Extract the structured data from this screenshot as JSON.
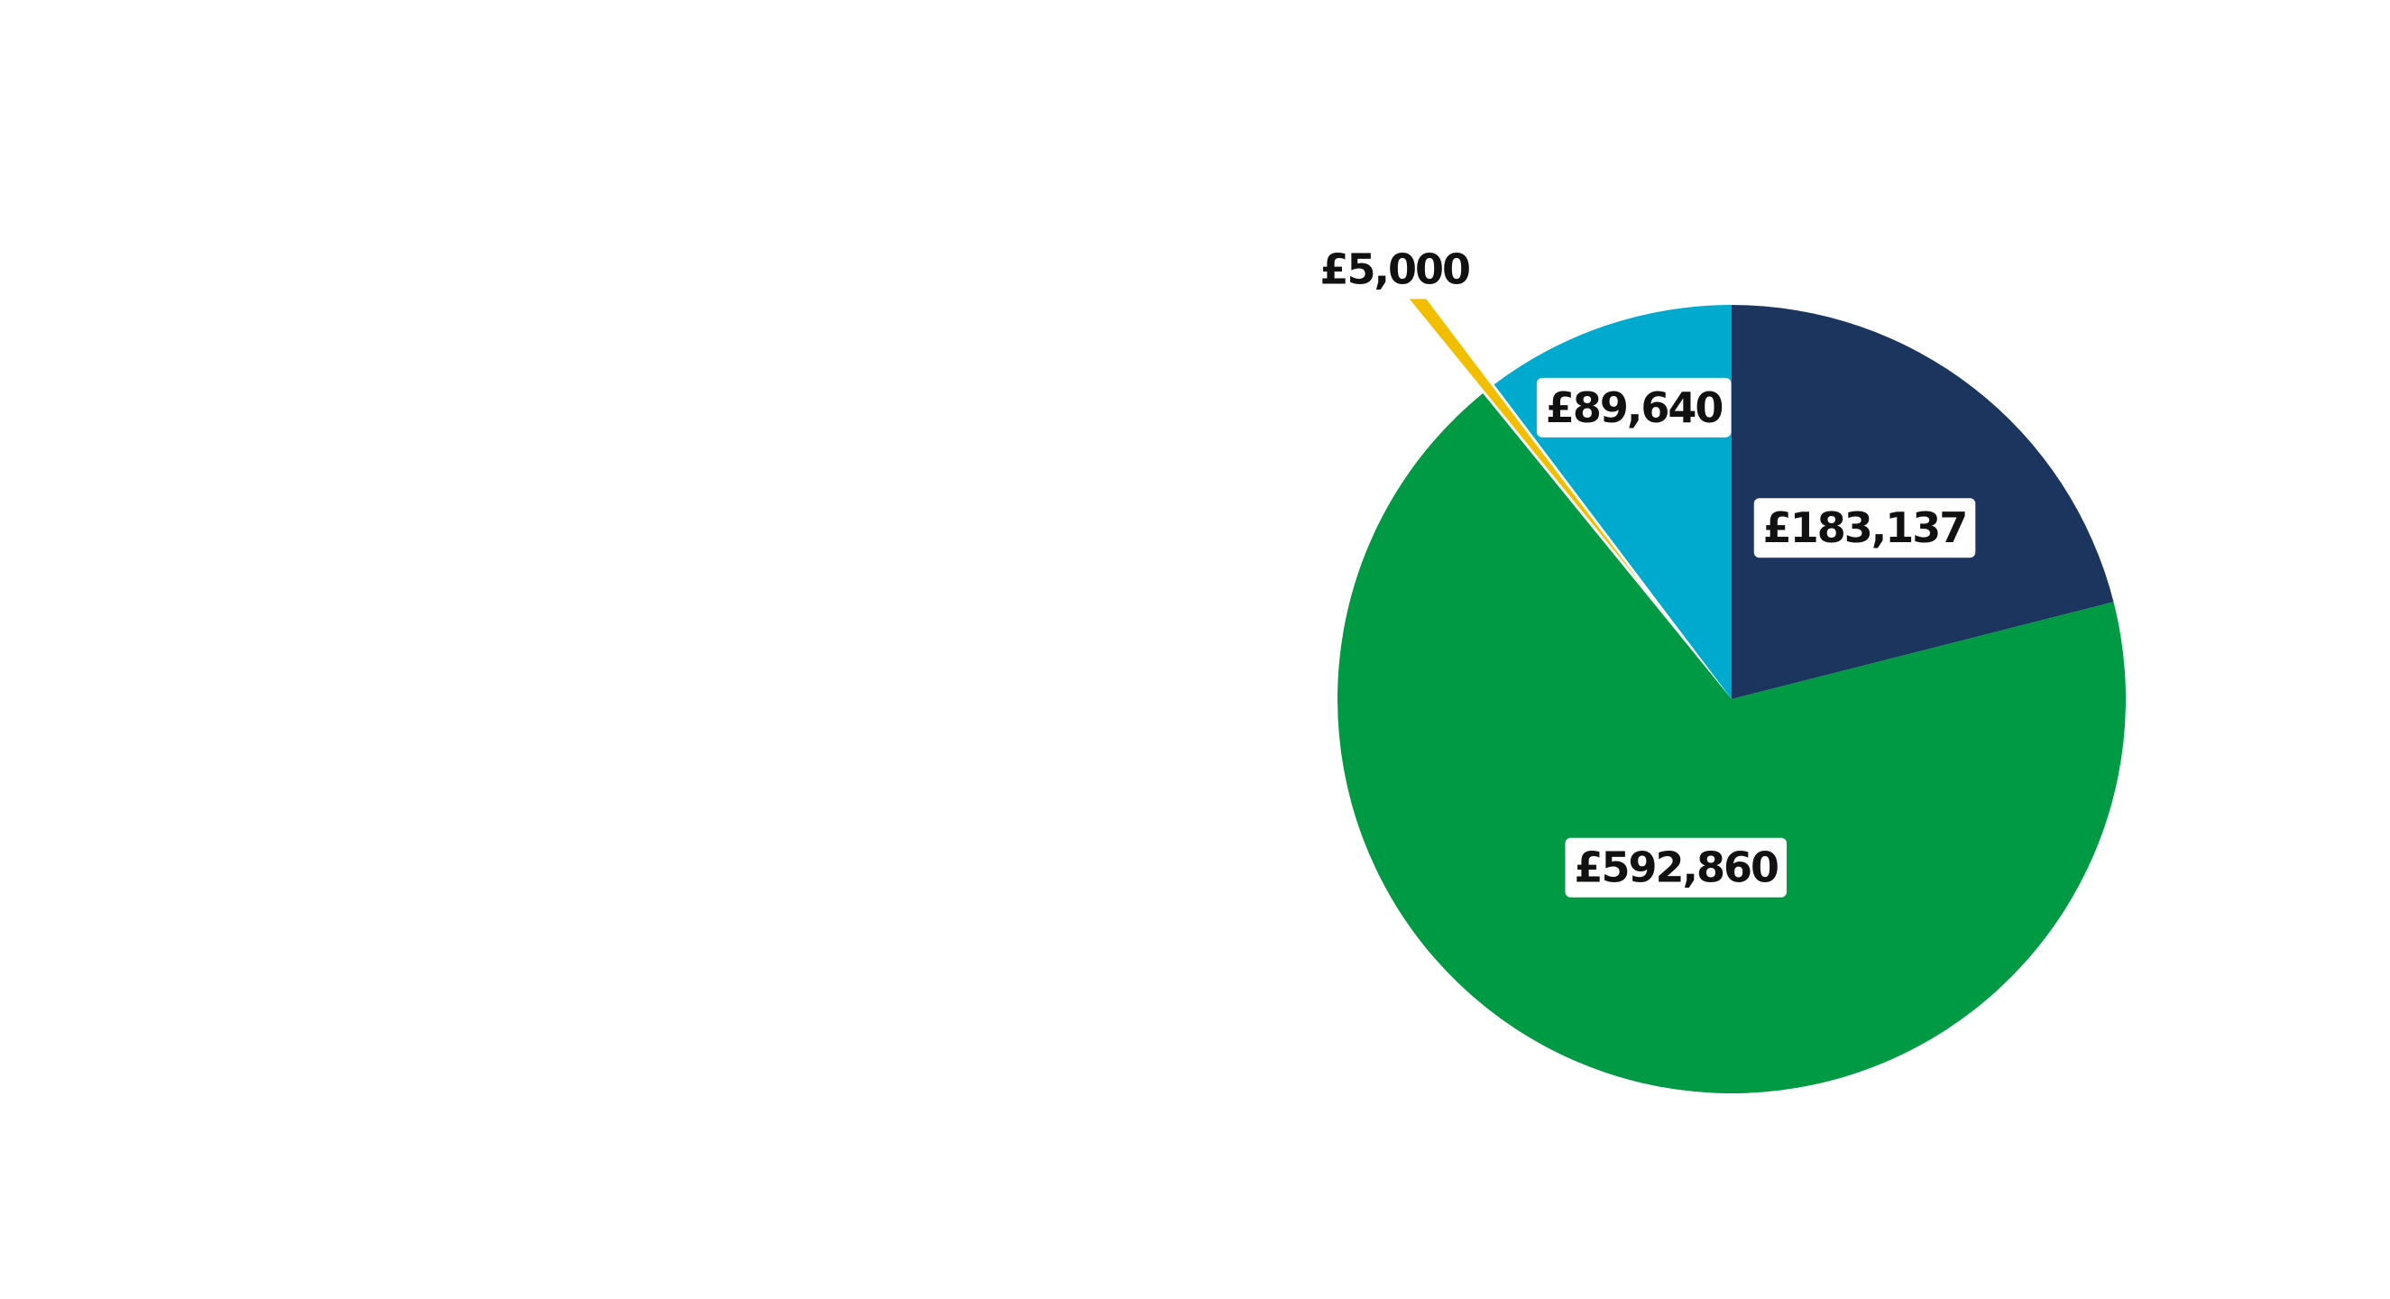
{
  "chart_data": {
    "type": "pie",
    "title": "",
    "slices": [
      {
        "label": "£183,137",
        "value": 183137,
        "color": "#1c355e"
      },
      {
        "label": "£592,860",
        "value": 592860,
        "color": "#009a44"
      },
      {
        "label": "£5,000",
        "value": 5000,
        "color": "#f2bf00",
        "exploded": true
      },
      {
        "label": "£89,640",
        "value": 89640,
        "color": "#00a9ce"
      }
    ],
    "start_angle_deg": 0,
    "direction": "clockwise",
    "legend": "none",
    "data_labels": true
  }
}
